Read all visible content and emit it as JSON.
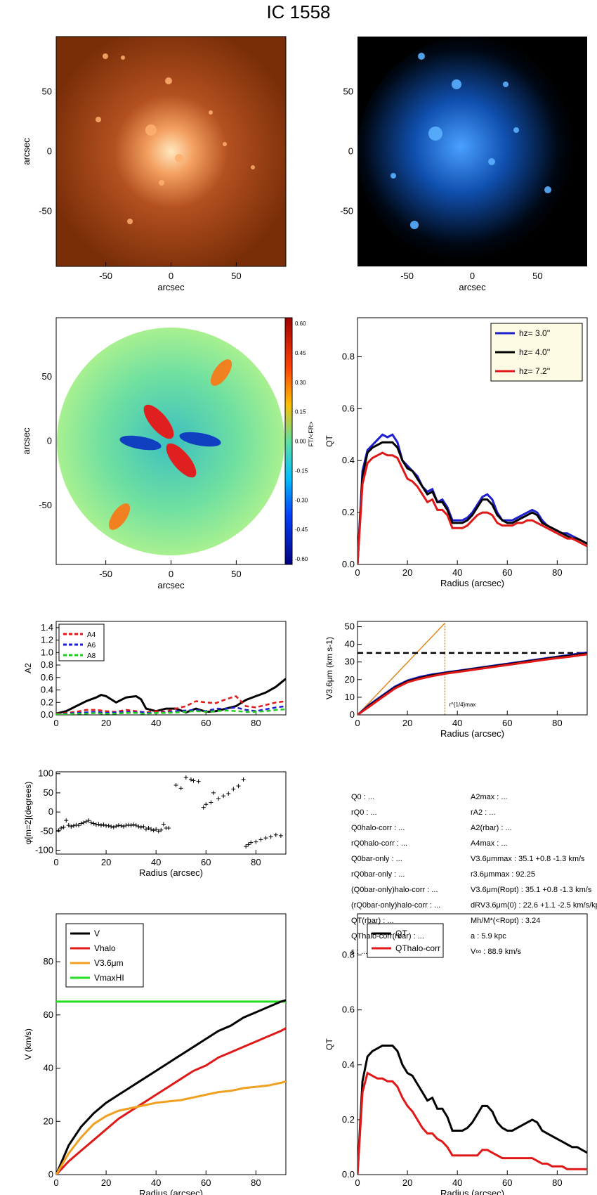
{
  "title": "IC 1558",
  "colors": {
    "blue": "#1f1fd0",
    "black": "#000000",
    "red": "#e01818",
    "orange": "#f0a020",
    "orange_line": "#e08a20",
    "green": "#22dd22",
    "dashed_green": "#22cc22"
  },
  "images": [
    {
      "name": "optical-image",
      "colormap": "orange",
      "xlabel": "arcsec",
      "ylabel": "arcsec",
      "xticks": [
        "-50",
        "0",
        "50"
      ],
      "yticks": [
        "50",
        "0",
        "-50"
      ]
    },
    {
      "name": "ir-image",
      "colormap": "blue",
      "xlabel": "arcsec",
      "xticks": [
        "-50",
        "0",
        "50"
      ],
      "yticks": [
        "50",
        "0",
        "-50"
      ]
    },
    {
      "name": "force-ratio-map",
      "xlabel": "arcsec",
      "ylabel": "arcsec",
      "xticks": [
        "-50",
        "0",
        "50"
      ],
      "yticks": [
        "50",
        "0",
        "-50"
      ],
      "colorbar": {
        "label": "FT/<FR>",
        "ticks": [
          "0.60",
          "0.45",
          "0.30",
          "0.15",
          "0.00",
          "-0.15",
          "-0.30",
          "-0.45",
          "-0.60"
        ]
      }
    }
  ],
  "chart_data": [
    {
      "id": "qt-profiles",
      "type": "line",
      "xlabel": "Radius (arcsec)",
      "ylabel": "QT",
      "xlim": [
        0,
        92
      ],
      "ylim": [
        0,
        0.95
      ],
      "xticks": [
        0,
        20,
        40,
        60,
        80
      ],
      "yticks": [
        0.0,
        0.2,
        0.4,
        0.6,
        0.8
      ],
      "legend": [
        {
          "label": "hz=  3.0''",
          "color": "#1f1fd0"
        },
        {
          "label": "hz=  4.0''",
          "color": "#000000"
        },
        {
          "label": "hz=  7.2''",
          "color": "#e01818"
        }
      ],
      "x": [
        0,
        2,
        4,
        6,
        8,
        10,
        12,
        14,
        16,
        18,
        20,
        22,
        24,
        26,
        28,
        30,
        32,
        34,
        36,
        38,
        40,
        42,
        44,
        46,
        48,
        50,
        52,
        54,
        56,
        58,
        60,
        62,
        64,
        66,
        68,
        70,
        72,
        74,
        76,
        78,
        80,
        82,
        84,
        86,
        88,
        90,
        92
      ],
      "series": [
        {
          "name": "hz=  3.0''",
          "color": "#1f1fd0",
          "values": [
            0,
            0.36,
            0.44,
            0.46,
            0.48,
            0.5,
            0.49,
            0.5,
            0.47,
            0.4,
            0.38,
            0.36,
            0.34,
            0.3,
            0.28,
            0.29,
            0.24,
            0.25,
            0.22,
            0.17,
            0.17,
            0.17,
            0.18,
            0.2,
            0.23,
            0.26,
            0.27,
            0.25,
            0.2,
            0.17,
            0.17,
            0.17,
            0.18,
            0.19,
            0.2,
            0.21,
            0.2,
            0.17,
            0.15,
            0.14,
            0.13,
            0.12,
            0.12,
            0.11,
            0.1,
            0.09,
            0.08
          ]
        },
        {
          "name": "hz=  4.0''",
          "color": "#000000",
          "values": [
            0,
            0.34,
            0.43,
            0.45,
            0.46,
            0.47,
            0.47,
            0.47,
            0.45,
            0.4,
            0.37,
            0.36,
            0.33,
            0.3,
            0.27,
            0.28,
            0.24,
            0.24,
            0.21,
            0.16,
            0.16,
            0.16,
            0.17,
            0.19,
            0.22,
            0.25,
            0.25,
            0.23,
            0.19,
            0.17,
            0.16,
            0.16,
            0.17,
            0.18,
            0.19,
            0.2,
            0.19,
            0.16,
            0.15,
            0.14,
            0.13,
            0.12,
            0.11,
            0.1,
            0.1,
            0.09,
            0.08
          ]
        },
        {
          "name": "hz=  7.2''",
          "color": "#e01818",
          "values": [
            0,
            0.31,
            0.39,
            0.41,
            0.42,
            0.43,
            0.42,
            0.42,
            0.41,
            0.37,
            0.33,
            0.32,
            0.3,
            0.27,
            0.24,
            0.25,
            0.21,
            0.21,
            0.19,
            0.14,
            0.14,
            0.14,
            0.15,
            0.17,
            0.19,
            0.2,
            0.2,
            0.19,
            0.16,
            0.15,
            0.15,
            0.15,
            0.16,
            0.16,
            0.17,
            0.17,
            0.16,
            0.15,
            0.14,
            0.13,
            0.12,
            0.11,
            0.1,
            0.1,
            0.09,
            0.08,
            0.07
          ]
        }
      ]
    },
    {
      "id": "fourier-amplitudes",
      "type": "line",
      "ylabel": "A2",
      "xlim": [
        0,
        92
      ],
      "ylim": [
        0,
        1.5
      ],
      "xticks": [
        0,
        20,
        40,
        60,
        80
      ],
      "yticks": [
        0.0,
        0.2,
        0.4,
        0.6,
        0.8,
        1.0,
        1.2,
        1.4
      ],
      "legend": [
        {
          "label": "A4",
          "color": "#e01818",
          "dashed": true
        },
        {
          "label": "A6",
          "color": "#1f1fd0",
          "dashed": true
        },
        {
          "label": "A8",
          "color": "#22cc22",
          "dashed": true
        }
      ],
      "x": [
        0,
        4,
        8,
        12,
        16,
        18,
        20,
        24,
        28,
        32,
        34,
        36,
        40,
        44,
        48,
        52,
        56,
        60,
        64,
        68,
        72,
        76,
        80,
        84,
        88,
        92
      ],
      "series": [
        {
          "name": "A2",
          "color": "#000000",
          "dashed": false,
          "values": [
            0.02,
            0.06,
            0.14,
            0.22,
            0.28,
            0.32,
            0.3,
            0.2,
            0.28,
            0.3,
            0.25,
            0.1,
            0.06,
            0.1,
            0.1,
            0.04,
            0.1,
            0.05,
            0.06,
            0.1,
            0.14,
            0.24,
            0.3,
            0.36,
            0.45,
            0.58
          ]
        },
        {
          "name": "A4",
          "color": "#e01818",
          "dashed": true,
          "values": [
            0.02,
            0.03,
            0.05,
            0.08,
            0.08,
            0.07,
            0.06,
            0.05,
            0.08,
            0.06,
            0.05,
            0.04,
            0.06,
            0.05,
            0.1,
            0.14,
            0.22,
            0.2,
            0.19,
            0.25,
            0.3,
            0.14,
            0.12,
            0.16,
            0.2,
            0.22
          ]
        },
        {
          "name": "A6",
          "color": "#1f1fd0",
          "dashed": true,
          "values": [
            0.01,
            0.02,
            0.03,
            0.04,
            0.05,
            0.04,
            0.03,
            0.04,
            0.05,
            0.04,
            0.05,
            0.03,
            0.03,
            0.04,
            0.06,
            0.07,
            0.08,
            0.06,
            0.1,
            0.1,
            0.12,
            0.08,
            0.06,
            0.09,
            0.12,
            0.14
          ]
        },
        {
          "name": "A8",
          "color": "#22cc22",
          "dashed": true,
          "values": [
            0.01,
            0.01,
            0.02,
            0.02,
            0.03,
            0.02,
            0.02,
            0.02,
            0.03,
            0.03,
            0.02,
            0.02,
            0.03,
            0.03,
            0.04,
            0.05,
            0.06,
            0.05,
            0.06,
            0.07,
            0.06,
            0.05,
            0.05,
            0.06,
            0.08,
            0.09
          ]
        }
      ]
    },
    {
      "id": "rotation-3p6",
      "type": "line",
      "xlabel": "Radius (arcsec)",
      "ylabel": "V3.6μm (km s-1)",
      "xlim": [
        0,
        92
      ],
      "ylim": [
        0,
        53
      ],
      "xticks": [
        0,
        20,
        40,
        60,
        80
      ],
      "yticks": [
        0,
        10,
        20,
        30,
        40,
        50
      ],
      "vmax": 35.1,
      "rmax_label": "r^{1/4}max",
      "rmax": 35,
      "x": [
        0,
        5,
        10,
        15,
        20,
        25,
        30,
        35,
        40,
        45,
        50,
        55,
        60,
        65,
        70,
        75,
        80,
        85,
        90,
        92
      ],
      "series": [
        {
          "name": "V_blue",
          "color": "#1f1fd0",
          "values": [
            0,
            6,
            11,
            16,
            19.5,
            21.5,
            23,
            24,
            25,
            26,
            27,
            28,
            29,
            30,
            31,
            32,
            33,
            34,
            35,
            35.3
          ]
        },
        {
          "name": "V_black",
          "color": "#000000",
          "values": [
            0,
            5.5,
            10.5,
            15.5,
            19,
            21,
            22.5,
            23.7,
            24.7,
            25.7,
            26.7,
            27.7,
            28.7,
            29.7,
            30.7,
            31.7,
            32.7,
            33.5,
            34.5,
            34.8
          ]
        },
        {
          "name": "V_red",
          "color": "#e01818",
          "values": [
            0,
            5,
            10,
            15,
            18.5,
            20.5,
            22,
            23.3,
            24.3,
            25.3,
            26.3,
            27.3,
            28.3,
            29.3,
            30.3,
            31.3,
            32.2,
            33,
            34,
            34.3
          ]
        }
      ],
      "orange_line": {
        "x": [
          0,
          35
        ],
        "y": [
          0,
          52
        ]
      }
    },
    {
      "id": "phase-angle",
      "type": "scatter",
      "xlabel": "Radius (arcsec)",
      "ylabel": "φ[m=2](degrees)",
      "xlim": [
        0,
        92
      ],
      "ylim": [
        -110,
        105
      ],
      "xticks": [
        0,
        20,
        40,
        60,
        80
      ],
      "yticks": [
        100,
        50,
        0,
        -50,
        -100
      ],
      "x": [
        1,
        2,
        3,
        4,
        5,
        6,
        7,
        8,
        9,
        10,
        11,
        12,
        13,
        14,
        15,
        16,
        17,
        18,
        19,
        20,
        21,
        22,
        23,
        24,
        25,
        26,
        27,
        28,
        29,
        30,
        31,
        32,
        33,
        34,
        35,
        36,
        37,
        38,
        39,
        40,
        41,
        42,
        43,
        44,
        45,
        48,
        50,
        52,
        54,
        55,
        57,
        59,
        60,
        62,
        63,
        65,
        67,
        69,
        71,
        73,
        75,
        76,
        77,
        78,
        80,
        82,
        84,
        86,
        88,
        90
      ],
      "y": [
        -48,
        -42,
        -40,
        -22,
        -35,
        -38,
        -36,
        -34,
        -35,
        -30,
        -28,
        -25,
        -22,
        -28,
        -30,
        -33,
        -32,
        -35,
        -33,
        -36,
        -36,
        -38,
        -40,
        -37,
        -35,
        -36,
        -38,
        -35,
        -34,
        -35,
        -33,
        -35,
        -38,
        -40,
        -38,
        -45,
        -42,
        -45,
        -48,
        -45,
        -50,
        -47,
        -32,
        -42,
        -42,
        70,
        62,
        90,
        85,
        82,
        80,
        12,
        20,
        25,
        50,
        35,
        42,
        48,
        60,
        68,
        85,
        -90,
        -85,
        -80,
        -78,
        -72,
        -68,
        -65,
        -60,
        -62
      ]
    },
    {
      "id": "rotation-curves",
      "type": "line",
      "xlabel": "Radius (arcsec)",
      "ylabel": "V (km/s)",
      "xlim": [
        0,
        92
      ],
      "ylim": [
        0,
        98
      ],
      "xticks": [
        0,
        20,
        40,
        60,
        80
      ],
      "yticks": [
        0,
        20,
        40,
        60,
        80
      ],
      "legend": [
        {
          "label": "V",
          "color": "#000000"
        },
        {
          "label": "Vhalo",
          "color": "#e01818"
        },
        {
          "label": "V3.6μm",
          "color": "#f0a020"
        },
        {
          "label": "VmaxHI",
          "color": "#22dd22"
        }
      ],
      "x": [
        0,
        5,
        10,
        15,
        20,
        25,
        30,
        35,
        40,
        45,
        50,
        55,
        60,
        65,
        70,
        75,
        80,
        85,
        90,
        92
      ],
      "series": [
        {
          "name": "V",
          "color": "#000000",
          "values": [
            0,
            11,
            18,
            23,
            27,
            30,
            33,
            36,
            39,
            42,
            45,
            48,
            51,
            54,
            56,
            59,
            61,
            63,
            65,
            65.5
          ]
        },
        {
          "name": "Vhalo",
          "color": "#e01818",
          "values": [
            0,
            5,
            9,
            13,
            17,
            21,
            24,
            27,
            30,
            33,
            36,
            39,
            41,
            44,
            46,
            48,
            50,
            52,
            54,
            55
          ]
        },
        {
          "name": "V3.6μm",
          "color": "#f0a020",
          "values": [
            0,
            8,
            14,
            19,
            22,
            24,
            25,
            26,
            27,
            27.5,
            28,
            29,
            30,
            31,
            31.5,
            32.5,
            33,
            33.5,
            34.5,
            35
          ]
        }
      ],
      "hline": {
        "name": "VmaxHI",
        "y": 65,
        "color": "#22dd22"
      }
    },
    {
      "id": "qt-halo-corr",
      "type": "line",
      "xlabel": "Radius (arcsec)",
      "ylabel": "QT",
      "xlim": [
        0,
        92
      ],
      "ylim": [
        0,
        0.95
      ],
      "xticks": [
        0,
        20,
        40,
        60,
        80
      ],
      "yticks": [
        0.0,
        0.2,
        0.4,
        0.6,
        0.8
      ],
      "legend": [
        {
          "label": "QT",
          "color": "#000000"
        },
        {
          "label": "QThalo-corr",
          "color": "#e01818"
        }
      ],
      "x": [
        0,
        2,
        4,
        6,
        8,
        10,
        12,
        14,
        16,
        18,
        20,
        22,
        24,
        26,
        28,
        30,
        32,
        34,
        36,
        38,
        40,
        42,
        44,
        46,
        48,
        50,
        52,
        54,
        56,
        58,
        60,
        62,
        64,
        66,
        68,
        70,
        72,
        74,
        76,
        78,
        80,
        82,
        84,
        86,
        88,
        90,
        92
      ],
      "series": [
        {
          "name": "QT",
          "color": "#000000",
          "values": [
            0,
            0.34,
            0.43,
            0.45,
            0.46,
            0.47,
            0.47,
            0.47,
            0.45,
            0.4,
            0.37,
            0.36,
            0.33,
            0.3,
            0.27,
            0.28,
            0.24,
            0.24,
            0.21,
            0.16,
            0.16,
            0.16,
            0.17,
            0.19,
            0.22,
            0.25,
            0.25,
            0.23,
            0.19,
            0.17,
            0.16,
            0.16,
            0.17,
            0.18,
            0.19,
            0.2,
            0.19,
            0.16,
            0.15,
            0.14,
            0.13,
            0.12,
            0.11,
            0.1,
            0.1,
            0.09,
            0.08
          ]
        },
        {
          "name": "QThalo-corr",
          "color": "#e01818",
          "values": [
            0,
            0.3,
            0.37,
            0.36,
            0.35,
            0.35,
            0.34,
            0.34,
            0.32,
            0.28,
            0.25,
            0.23,
            0.2,
            0.17,
            0.15,
            0.15,
            0.13,
            0.12,
            0.1,
            0.07,
            0.07,
            0.07,
            0.07,
            0.07,
            0.07,
            0.09,
            0.09,
            0.08,
            0.07,
            0.06,
            0.06,
            0.06,
            0.06,
            0.06,
            0.06,
            0.06,
            0.05,
            0.04,
            0.04,
            0.03,
            0.03,
            0.03,
            0.02,
            0.02,
            0.02,
            0.02,
            0.02
          ]
        }
      ]
    }
  ],
  "info": {
    "left": [
      "Q0 : ...",
      "rQ0 : ...",
      "Q0halo-corr : ...",
      "rQ0halo-corr : ...",
      "Q0bar-only : ...",
      "rQ0bar-only : ...",
      "(Q0bar-only)halo-corr : ...",
      "(rQ0bar-only)halo-corr : ...",
      "QT(rbar) : ...",
      "QThalo-corr(rbar) : ...",
      "ε : ..."
    ],
    "right": [
      "A2max : ...",
      "rA2 : ...",
      "A2(rbar) : ...",
      "A4max : ...",
      "V3.6μmmax :  35.1 +0.8 -1.3 km/s",
      "r3.6μmmax :  92.25",
      "V3.6μm(Ropt) :  35.1 +0.8 -1.3 km/s",
      "dRV3.6μm(0) :  22.6 +1.1 -2.5 km/s/kpc",
      "Mh/M*(<Ropt) :  3.24",
      "a :   5.9 kpc",
      "V∞ :  88.9 km/s"
    ]
  }
}
